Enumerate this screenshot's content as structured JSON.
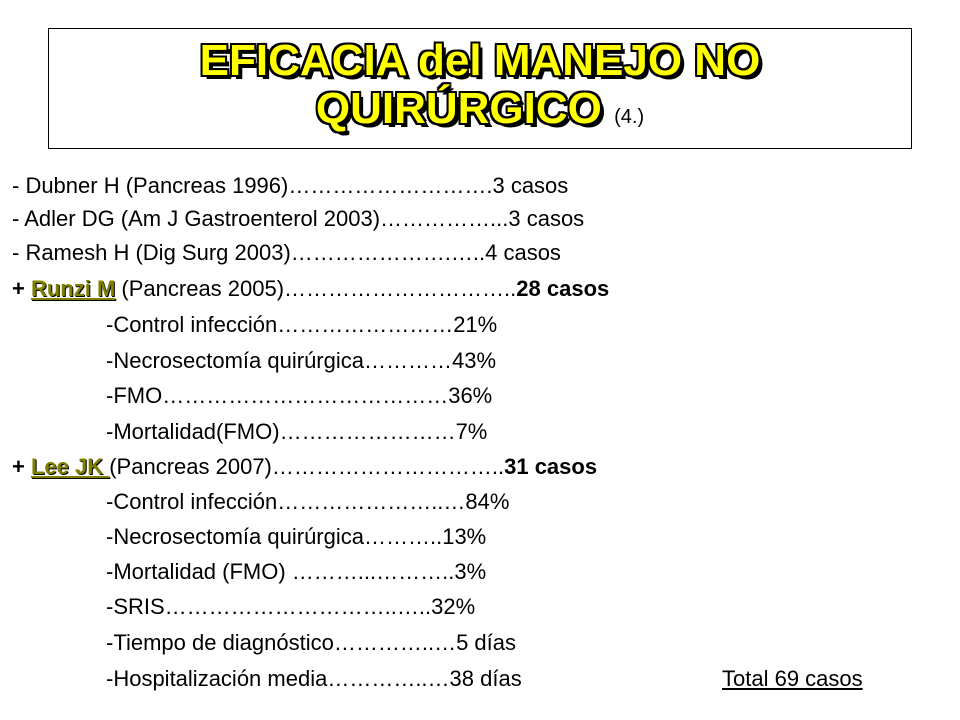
{
  "title": {
    "line1": "EFICACIA del MANEJO NO",
    "line2": "QUIRÚRGICO",
    "ref": "(4.)"
  },
  "studies": [
    {
      "text": "- Dubner H (Pancreas 1996)……………………….3  casos"
    },
    {
      "text": "- Adler DG (Am J Gastroenterol 2003)……………...3  casos"
    },
    {
      "text": "- Ramesh H (Dig Surg 2003)………………….…..4  casos"
    }
  ],
  "runzi": {
    "plus": "+ ",
    "author": "Runzi M",
    "rest": " (Pancreas 2005)…………………………..",
    "cases": "28  casos",
    "items": [
      "-Control infección……………………21%",
      "-Necrosectomía quirúrgica…………43%",
      "-FMO…………………………………36%",
      "-Mortalidad(FMO)……………………7%"
    ]
  },
  "lee": {
    "plus": "+ ",
    "author": "Lee JK ",
    "rest": "(Pancreas 2007)…………………………..",
    "cases": "31  casos",
    "items": [
      "-Control infección…………………..…84%",
      "-Necrosectomía quirúrgica………..13%",
      "-Mortalidad (FMO) ………...………..3%",
      "-SRIS…………………………..…..32%",
      "-Tiempo de diagnóstico…………..…5  días",
      "-Hospitalización media…………..…38  días"
    ]
  },
  "total": "Total 69 casos"
}
